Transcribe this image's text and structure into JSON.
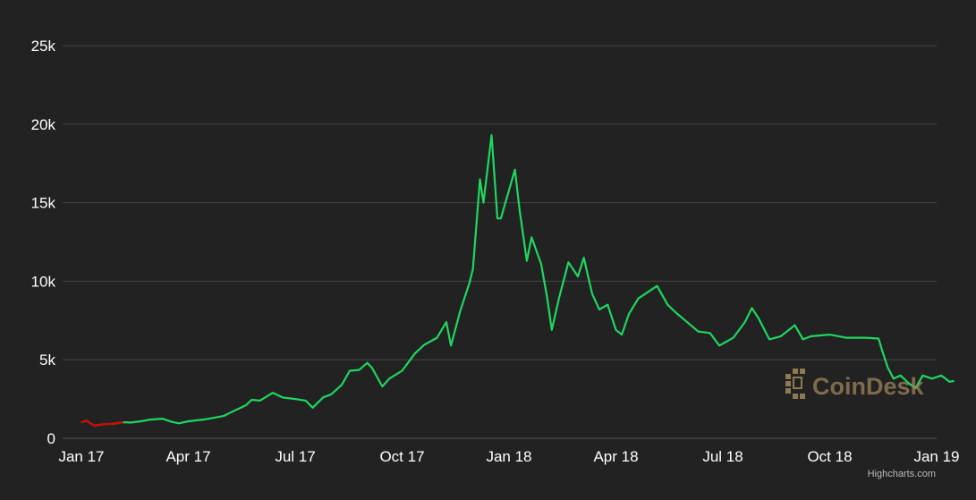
{
  "chart_data": {
    "type": "line",
    "title": "",
    "xlabel": "",
    "ylabel": "",
    "x_ticks": [
      "Jan 17",
      "Apr 17",
      "Jul 17",
      "Oct 17",
      "Jan 18",
      "Apr 18",
      "Jul 18",
      "Oct 18",
      "Jan 19"
    ],
    "y_ticks": [
      "0",
      "5k",
      "10k",
      "15k",
      "20k",
      "25k"
    ],
    "ylim": [
      0,
      25000
    ],
    "xlim": [
      "2017-01-01",
      "2019-01-20"
    ],
    "grid": true,
    "legend": "none",
    "colors": {
      "rise": "#1ed760",
      "fall": "#e00000",
      "background": "#222222",
      "grid": "#444444"
    },
    "series": [
      {
        "points": [
          [
            "2017-01-01",
            1000
          ],
          [
            "2017-01-05",
            1130
          ],
          [
            "2017-01-12",
            800
          ],
          [
            "2017-01-20",
            900
          ],
          [
            "2017-01-28",
            920
          ],
          [
            "2017-02-05",
            1020
          ],
          [
            "2017-02-12",
            1000
          ],
          [
            "2017-02-20",
            1080
          ],
          [
            "2017-02-28",
            1190
          ],
          [
            "2017-03-10",
            1250
          ],
          [
            "2017-03-18",
            1050
          ],
          [
            "2017-03-24",
            950
          ],
          [
            "2017-04-01",
            1080
          ],
          [
            "2017-04-15",
            1200
          ],
          [
            "2017-05-01",
            1420
          ],
          [
            "2017-05-10",
            1750
          ],
          [
            "2017-05-20",
            2100
          ],
          [
            "2017-05-25",
            2450
          ],
          [
            "2017-06-01",
            2400
          ],
          [
            "2017-06-12",
            2900
          ],
          [
            "2017-06-20",
            2600
          ],
          [
            "2017-07-01",
            2500
          ],
          [
            "2017-07-10",
            2400
          ],
          [
            "2017-07-16",
            1950
          ],
          [
            "2017-07-25",
            2600
          ],
          [
            "2017-08-01",
            2800
          ],
          [
            "2017-08-10",
            3400
          ],
          [
            "2017-08-17",
            4300
          ],
          [
            "2017-08-25",
            4350
          ],
          [
            "2017-09-01",
            4800
          ],
          [
            "2017-09-05",
            4500
          ],
          [
            "2017-09-14",
            3300
          ],
          [
            "2017-09-20",
            3800
          ],
          [
            "2017-10-01",
            4300
          ],
          [
            "2017-10-12",
            5400
          ],
          [
            "2017-10-20",
            5950
          ],
          [
            "2017-10-31",
            6400
          ],
          [
            "2017-11-08",
            7400
          ],
          [
            "2017-11-12",
            5900
          ],
          [
            "2017-11-20",
            8100
          ],
          [
            "2017-11-28",
            9900
          ],
          [
            "2017-12-01",
            10800
          ],
          [
            "2017-12-07",
            16500
          ],
          [
            "2017-12-10",
            15000
          ],
          [
            "2017-12-17",
            19300
          ],
          [
            "2017-12-22",
            14000
          ],
          [
            "2017-12-25",
            14000
          ],
          [
            "2018-01-06",
            17100
          ],
          [
            "2018-01-10",
            14500
          ],
          [
            "2018-01-16",
            11300
          ],
          [
            "2018-01-20",
            12800
          ],
          [
            "2018-01-28",
            11100
          ],
          [
            "2018-02-02",
            9000
          ],
          [
            "2018-02-06",
            6900
          ],
          [
            "2018-02-12",
            8900
          ],
          [
            "2018-02-20",
            11200
          ],
          [
            "2018-02-28",
            10300
          ],
          [
            "2018-03-05",
            11500
          ],
          [
            "2018-03-12",
            9200
          ],
          [
            "2018-03-18",
            8200
          ],
          [
            "2018-03-25",
            8500
          ],
          [
            "2018-04-01",
            6900
          ],
          [
            "2018-04-06",
            6600
          ],
          [
            "2018-04-12",
            7900
          ],
          [
            "2018-04-20",
            8900
          ],
          [
            "2018-04-30",
            9400
          ],
          [
            "2018-05-06",
            9700
          ],
          [
            "2018-05-15",
            8500
          ],
          [
            "2018-05-22",
            8000
          ],
          [
            "2018-05-30",
            7500
          ],
          [
            "2018-06-10",
            6800
          ],
          [
            "2018-06-20",
            6700
          ],
          [
            "2018-06-28",
            5900
          ],
          [
            "2018-07-10",
            6400
          ],
          [
            "2018-07-20",
            7400
          ],
          [
            "2018-07-26",
            8300
          ],
          [
            "2018-08-01",
            7600
          ],
          [
            "2018-08-10",
            6300
          ],
          [
            "2018-08-20",
            6500
          ],
          [
            "2018-09-01",
            7200
          ],
          [
            "2018-09-08",
            6300
          ],
          [
            "2018-09-15",
            6500
          ],
          [
            "2018-10-01",
            6600
          ],
          [
            "2018-10-15",
            6400
          ],
          [
            "2018-11-01",
            6400
          ],
          [
            "2018-11-12",
            6350
          ],
          [
            "2018-11-15",
            5600
          ],
          [
            "2018-11-20",
            4500
          ],
          [
            "2018-11-25",
            3800
          ],
          [
            "2018-12-01",
            4000
          ],
          [
            "2018-12-08",
            3500
          ],
          [
            "2018-12-14",
            3200
          ],
          [
            "2018-12-20",
            4000
          ],
          [
            "2018-12-28",
            3800
          ],
          [
            "2019-01-05",
            4000
          ],
          [
            "2019-01-12",
            3600
          ],
          [
            "2019-01-16",
            3650
          ]
        ]
      }
    ]
  },
  "watermark": {
    "text": "CoinDesk",
    "icon": "coindesk-logo-icon"
  },
  "credits": "Highcharts.com"
}
